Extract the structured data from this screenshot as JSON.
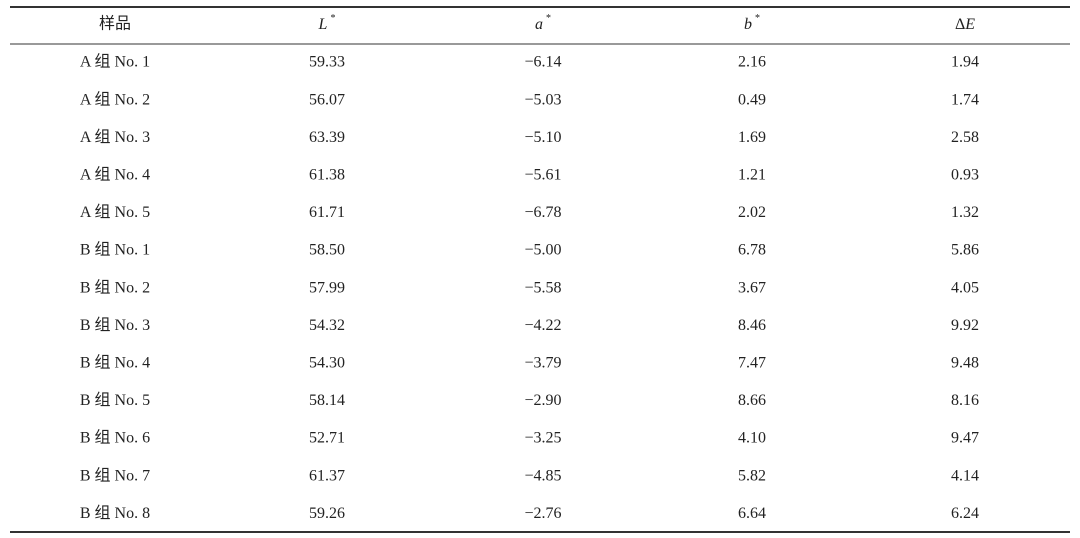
{
  "table": {
    "headers": [
      "样品",
      {
        "text": "L",
        "sup": "*"
      },
      {
        "text": "a",
        "sup": "*"
      },
      {
        "text": "b",
        "sup": "*"
      },
      {
        "prefix": "Δ",
        "text": "E"
      }
    ],
    "rows": [
      [
        "A 组 No. 1",
        "59.33",
        "−6.14",
        "2.16",
        "1.94"
      ],
      [
        "A 组 No. 2",
        "56.07",
        "−5.03",
        "0.49",
        "1.74"
      ],
      [
        "A 组 No. 3",
        "63.39",
        "−5.10",
        "1.69",
        "2.58"
      ],
      [
        "A 组 No. 4",
        "61.38",
        "−5.61",
        "1.21",
        "0.93"
      ],
      [
        "A 组 No. 5",
        "61.71",
        "−6.78",
        "2.02",
        "1.32"
      ],
      [
        "B 组 No. 1",
        "58.50",
        "−5.00",
        "6.78",
        "5.86"
      ],
      [
        "B 组 No. 2",
        "57.99",
        "−5.58",
        "3.67",
        "4.05"
      ],
      [
        "B 组 No. 3",
        "54.32",
        "−4.22",
        "8.46",
        "9.92"
      ],
      [
        "B 组 No. 4",
        "54.30",
        "−3.79",
        "7.47",
        "9.48"
      ],
      [
        "B 组 No. 5",
        "58.14",
        "−2.90",
        "8.66",
        "8.16"
      ],
      [
        "B 组 No. 6",
        "52.71",
        "−3.25",
        "4.10",
        "9.47"
      ],
      [
        "B 组 No. 7",
        "61.37",
        "−4.85",
        "5.82",
        "4.14"
      ],
      [
        "B 组 No. 8",
        "59.26",
        "−2.76",
        "6.64",
        "6.24"
      ]
    ]
  }
}
